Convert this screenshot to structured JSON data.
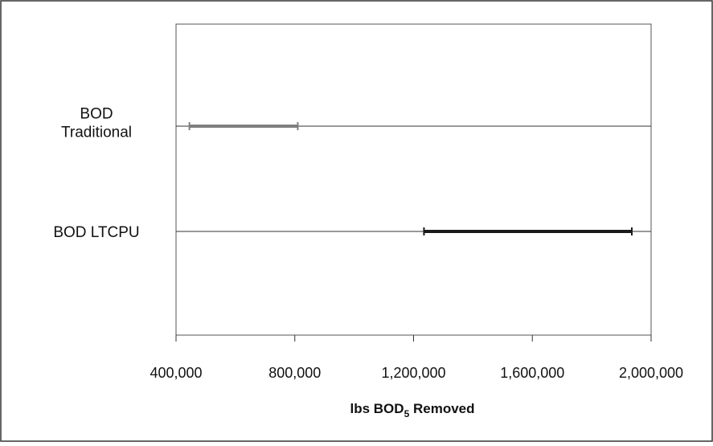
{
  "chart_data": {
    "type": "range-bar",
    "title": "",
    "xlabel": "lbs BOD",
    "xlabel_subscript": "5",
    "xlabel_suffix": " Removed",
    "ylabel": "",
    "xlim": [
      400000,
      2000000
    ],
    "xticks": [
      400000,
      800000,
      1200000,
      1600000,
      2000000
    ],
    "xtick_labels": [
      "400,000",
      "800,000",
      "1,200,000",
      "1,600,000",
      "2,000,000"
    ],
    "grid": false,
    "legend": "none",
    "series": [
      {
        "name": "BOD Traditional",
        "label_lines": [
          "BOD",
          "Traditional"
        ],
        "low": 445000,
        "high": 810000,
        "color": "#7f7f7f"
      },
      {
        "name": "BOD LTCPU",
        "label_lines": [
          "BOD LTCPU"
        ],
        "low": 1235000,
        "high": 1935000,
        "color": "#1a1a1a"
      }
    ]
  }
}
